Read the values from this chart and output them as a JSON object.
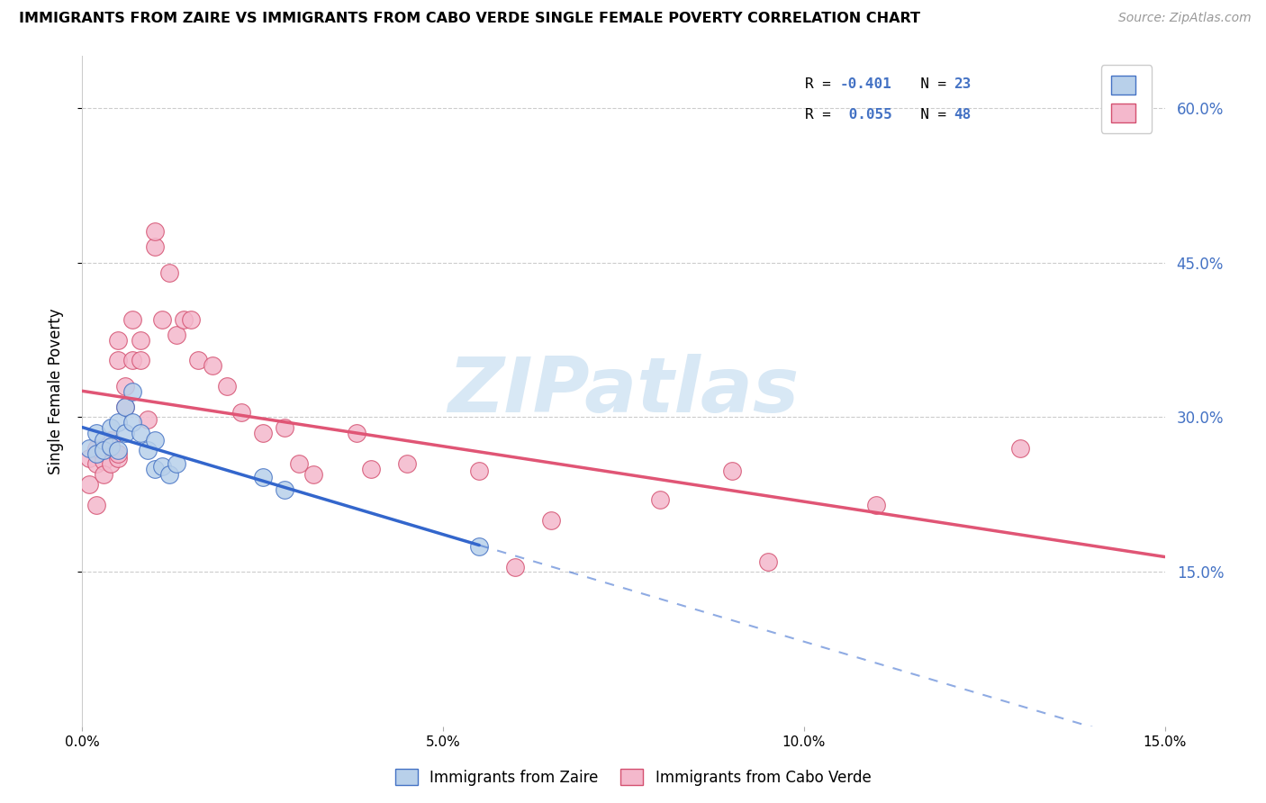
{
  "title": "IMMIGRANTS FROM ZAIRE VS IMMIGRANTS FROM CABO VERDE SINGLE FEMALE POVERTY CORRELATION CHART",
  "source": "Source: ZipAtlas.com",
  "ylabel": "Single Female Poverty",
  "ytick_vals": [
    0.15,
    0.3,
    0.45,
    0.6
  ],
  "xlim": [
    0.0,
    0.15
  ],
  "ylim": [
    0.0,
    0.65
  ],
  "color_zaire_fill": "#b8d0ea",
  "color_zaire_edge": "#4472c4",
  "color_cabo_fill": "#f4b8cc",
  "color_cabo_edge": "#d45070",
  "color_zaire_line": "#3366cc",
  "color_cabo_line": "#e05575",
  "watermark_text": "ZIPatlas",
  "watermark_color": "#d8e8f5",
  "bottom_label1": "Immigrants from Zaire",
  "bottom_label2": "Immigrants from Cabo Verde",
  "zaire_x": [
    0.001,
    0.002,
    0.002,
    0.003,
    0.003,
    0.004,
    0.004,
    0.005,
    0.005,
    0.006,
    0.006,
    0.007,
    0.007,
    0.008,
    0.009,
    0.01,
    0.01,
    0.011,
    0.012,
    0.013,
    0.025,
    0.028,
    0.055
  ],
  "zaire_y": [
    0.27,
    0.285,
    0.265,
    0.278,
    0.268,
    0.29,
    0.272,
    0.295,
    0.268,
    0.285,
    0.31,
    0.325,
    0.295,
    0.285,
    0.268,
    0.278,
    0.25,
    0.252,
    0.245,
    0.255,
    0.242,
    0.23,
    0.175
  ],
  "cabo_x": [
    0.001,
    0.001,
    0.002,
    0.002,
    0.002,
    0.002,
    0.003,
    0.003,
    0.003,
    0.004,
    0.004,
    0.005,
    0.005,
    0.005,
    0.005,
    0.006,
    0.006,
    0.007,
    0.007,
    0.008,
    0.008,
    0.009,
    0.01,
    0.01,
    0.011,
    0.012,
    0.013,
    0.014,
    0.015,
    0.016,
    0.018,
    0.02,
    0.022,
    0.025,
    0.028,
    0.03,
    0.032,
    0.038,
    0.04,
    0.045,
    0.055,
    0.06,
    0.065,
    0.08,
    0.09,
    0.095,
    0.11,
    0.13
  ],
  "cabo_y": [
    0.26,
    0.235,
    0.268,
    0.255,
    0.215,
    0.27,
    0.258,
    0.245,
    0.272,
    0.278,
    0.255,
    0.26,
    0.355,
    0.375,
    0.265,
    0.31,
    0.33,
    0.355,
    0.395,
    0.355,
    0.375,
    0.298,
    0.465,
    0.48,
    0.395,
    0.44,
    0.38,
    0.395,
    0.395,
    0.355,
    0.35,
    0.33,
    0.305,
    0.285,
    0.29,
    0.255,
    0.245,
    0.285,
    0.25,
    0.255,
    0.248,
    0.155,
    0.2,
    0.22,
    0.248,
    0.16,
    0.215,
    0.27
  ]
}
